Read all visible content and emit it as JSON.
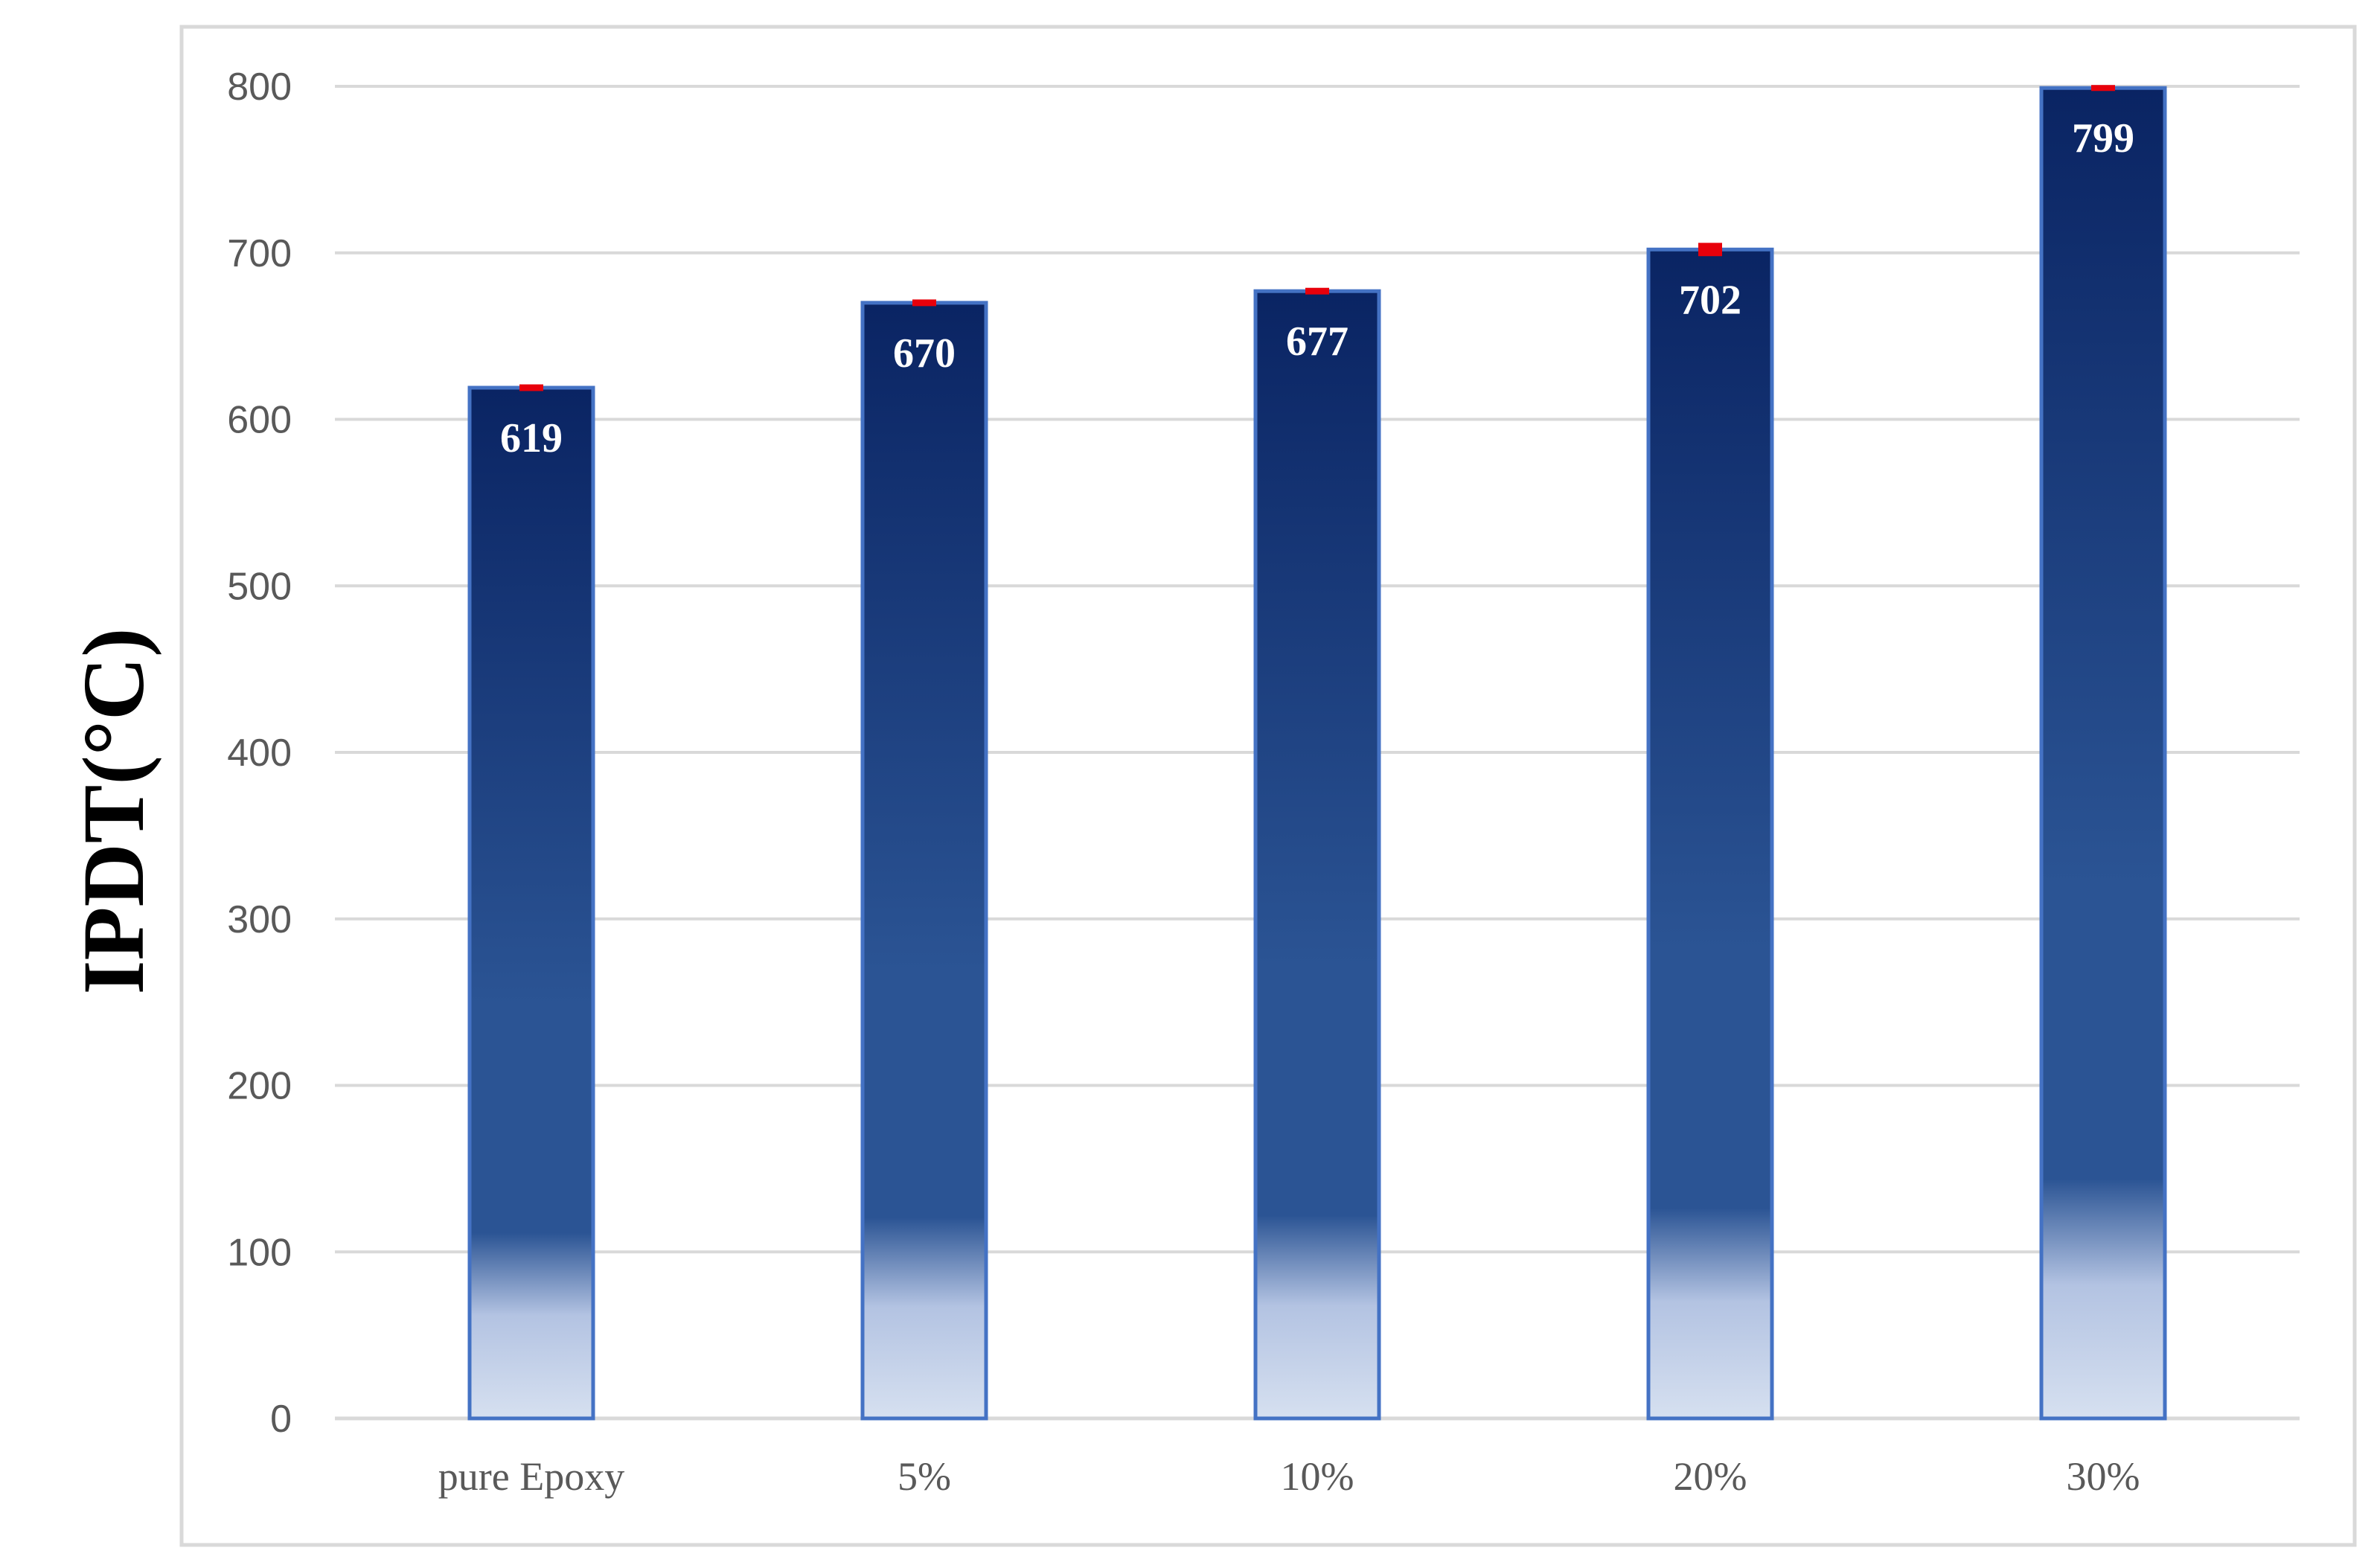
{
  "chart_data": {
    "type": "bar",
    "title": "",
    "xlabel": "",
    "ylabel": "IPDT(°C)",
    "categories": [
      "pure Epoxy",
      "5%",
      "10%",
      "20%",
      "30%"
    ],
    "values": [
      619,
      670,
      677,
      702,
      799
    ],
    "data_labels": [
      "619",
      "670",
      "677",
      "702",
      "799"
    ],
    "error_bars": [
      2,
      2,
      2,
      4,
      1
    ],
    "ylim": [
      0,
      800
    ],
    "yticks": [
      0,
      100,
      200,
      300,
      400,
      500,
      600,
      700,
      800
    ],
    "ytick_labels": [
      "0",
      "100",
      "200",
      "300",
      "400",
      "500",
      "600",
      "700",
      "800"
    ],
    "grid": true,
    "legend": "none",
    "colors": {
      "bar_top": "#0a2463",
      "bar_mid": "#2b5494",
      "bar_bottom": "#d6e0f0",
      "bar_edge": "#4472c4",
      "error_bar": "#e8000b",
      "gridline": "#d9d9d9"
    }
  }
}
